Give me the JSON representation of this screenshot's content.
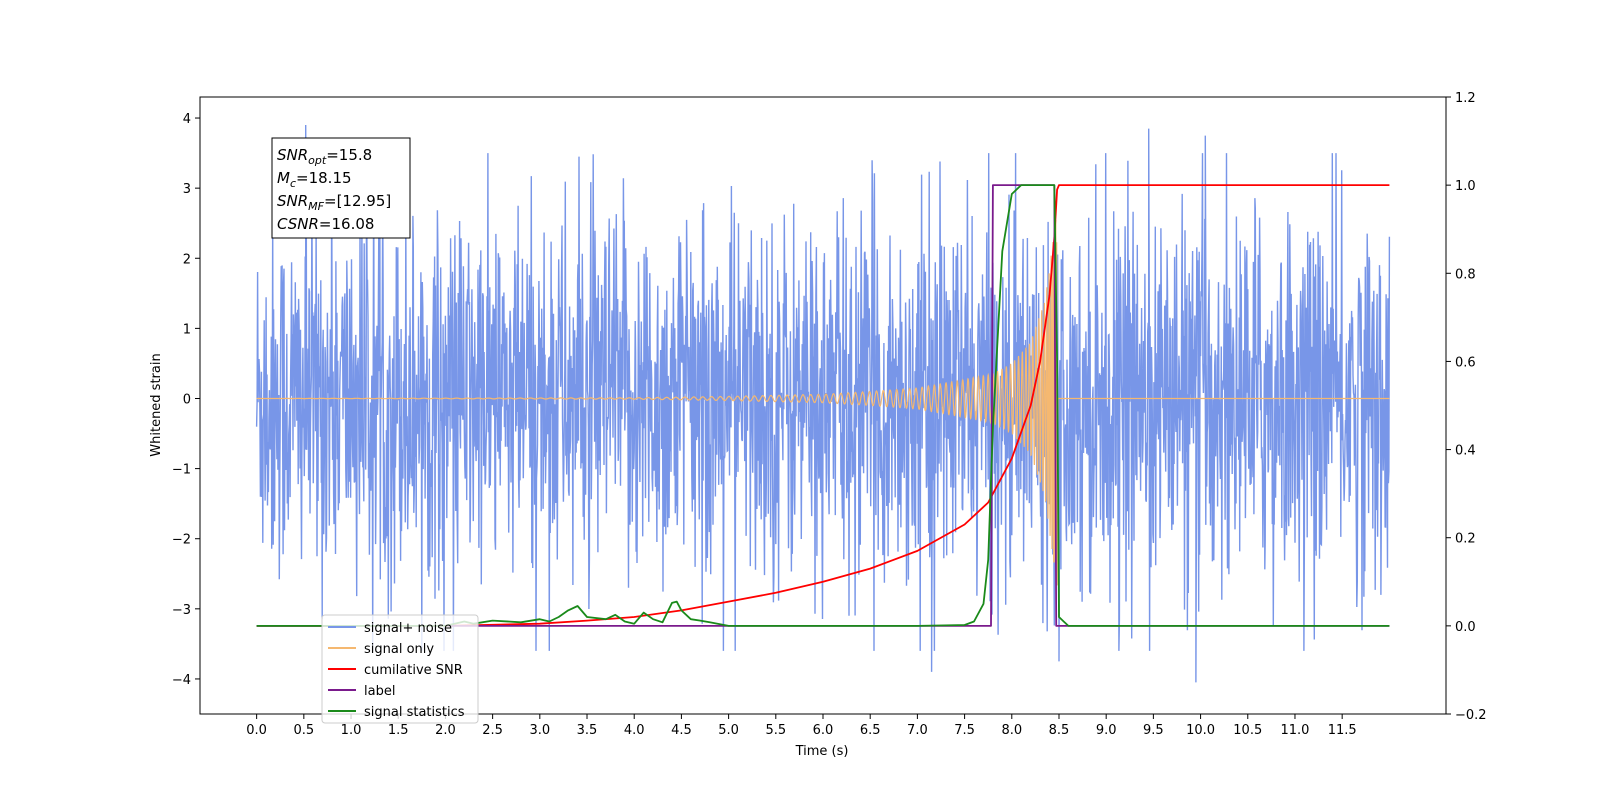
{
  "chart_data": {
    "type": "line",
    "title": "",
    "xlabel": "Time (s)",
    "ylabel": "Whitened strain",
    "xlim": [
      -0.6,
      12.6
    ],
    "ylim": [
      -4.5,
      4.3
    ],
    "y2lim": [
      -0.2,
      1.2
    ],
    "grid": false,
    "legend_position": "lower-left",
    "x_ticks": [
      "0.0",
      "0.5",
      "1.0",
      "1.5",
      "2.0",
      "2.5",
      "3.0",
      "3.5",
      "4.0",
      "4.5",
      "5.0",
      "5.5",
      "6.0",
      "6.5",
      "7.0",
      "7.5",
      "8.0",
      "8.5",
      "9.0",
      "9.5",
      "10.0",
      "10.5",
      "11.0",
      "11.5"
    ],
    "y_ticks": [
      "4",
      "3",
      "2",
      "1",
      "0",
      "−1",
      "−2",
      "−3",
      "−4"
    ],
    "y2_ticks": [
      "1.2",
      "1.0",
      "0.8",
      "0.6",
      "0.4",
      "0.2",
      "0.0",
      "−0.2"
    ],
    "annotation": [
      {
        "base": "SNR",
        "sub": "opt",
        "rest": "=15.8"
      },
      {
        "base": "M",
        "sub": "c",
        "rest": "=18.15"
      },
      {
        "base": "SNR",
        "sub": "MF",
        "rest": "=[12.95]"
      },
      {
        "base": "CSNR",
        "sub": "",
        "rest": "=16.08"
      }
    ],
    "series": [
      {
        "name": "signal+ noise",
        "color": "#7896e8",
        "axis": "left",
        "x_range": [
          0.0,
          12.0
        ],
        "typical_amplitude": 1.8,
        "peak_values": [
          [
            0.52,
            3.9
          ],
          [
            9.45,
            3.85
          ],
          [
            10.05,
            3.75
          ],
          [
            9.95,
            -4.05
          ],
          [
            7.15,
            -3.9
          ],
          [
            8.5,
            -3.75
          ]
        ]
      },
      {
        "name": "signal only",
        "color": "#f5b870",
        "axis": "left",
        "x_range": [
          0.0,
          12.0
        ],
        "merger_time": 8.48,
        "envelope": [
          [
            0.0,
            0.0
          ],
          [
            4.0,
            0.01
          ],
          [
            5.0,
            0.03
          ],
          [
            6.0,
            0.06
          ],
          [
            6.5,
            0.1
          ],
          [
            7.0,
            0.15
          ],
          [
            7.5,
            0.27
          ],
          [
            7.8,
            0.35
          ],
          [
            8.0,
            0.5
          ],
          [
            8.2,
            0.8
          ],
          [
            8.35,
            1.4
          ],
          [
            8.45,
            2.4
          ],
          [
            8.48,
            3.0
          ],
          [
            8.49,
            0.0
          ],
          [
            12.0,
            0.0
          ]
        ]
      },
      {
        "name": "cumilative SNR",
        "color": "#ff0000",
        "axis": "right",
        "x": [
          0.0,
          2.0,
          3.0,
          3.5,
          4.0,
          4.5,
          5.0,
          5.5,
          6.0,
          6.5,
          7.0,
          7.5,
          7.75,
          8.0,
          8.2,
          8.3,
          8.4,
          8.45,
          8.48,
          8.5,
          12.0
        ],
        "values": [
          0.0,
          0.0,
          0.005,
          0.012,
          0.02,
          0.035,
          0.055,
          0.075,
          0.1,
          0.13,
          0.17,
          0.23,
          0.28,
          0.38,
          0.5,
          0.6,
          0.75,
          0.88,
          0.99,
          1.0,
          1.0
        ]
      },
      {
        "name": "label",
        "color": "#7a1a8c",
        "axis": "right",
        "x": [
          0.0,
          7.78,
          7.8,
          8.45,
          8.47,
          12.0
        ],
        "values": [
          0.0,
          0.0,
          1.0,
          1.0,
          0.0,
          0.0
        ]
      },
      {
        "name": "signal statistics",
        "color": "#1a8a1a",
        "axis": "right",
        "x": [
          0.0,
          1.5,
          2.0,
          2.2,
          2.3,
          2.5,
          2.8,
          3.0,
          3.1,
          3.2,
          3.3,
          3.4,
          3.5,
          3.7,
          3.8,
          3.9,
          4.0,
          4.1,
          4.2,
          4.3,
          4.4,
          4.45,
          4.5,
          4.6,
          4.7,
          4.8,
          5.0,
          6.0,
          7.0,
          7.5,
          7.6,
          7.7,
          7.75,
          7.8,
          7.9,
          8.0,
          8.1,
          8.3,
          8.45,
          8.48,
          8.5,
          8.55,
          8.6,
          12.0
        ],
        "values": [
          0.0,
          0.0,
          0.0,
          0.01,
          0.005,
          0.012,
          0.008,
          0.015,
          0.01,
          0.02,
          0.035,
          0.045,
          0.02,
          0.015,
          0.025,
          0.01,
          0.005,
          0.03,
          0.015,
          0.008,
          0.052,
          0.055,
          0.035,
          0.015,
          0.012,
          0.008,
          0.0,
          0.0,
          0.0,
          0.002,
          0.01,
          0.05,
          0.15,
          0.45,
          0.85,
          0.98,
          1.0,
          1.0,
          1.0,
          0.6,
          0.02,
          0.01,
          0.0,
          0.0
        ]
      }
    ]
  }
}
